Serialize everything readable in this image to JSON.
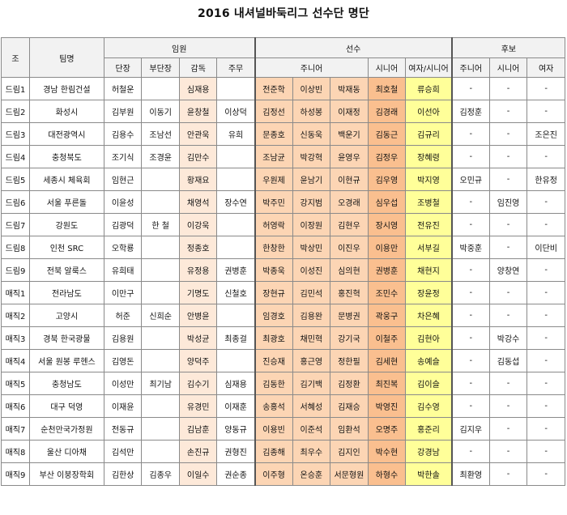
{
  "title": "2016 내셔널바둑리그 선수단 명단",
  "colors": {
    "header_bg": "#f2f2f2",
    "gamdok": "#fde9d9",
    "junior": "#fcd5b4",
    "senior": "#fabf8f",
    "women": "#ffff99"
  },
  "headers": {
    "jo": "조",
    "team": "팀명",
    "officers": "임원",
    "players": "선수",
    "reserves": "후보",
    "dandan": "단장",
    "bu_dandan": "부단장",
    "gamdok": "감독",
    "jumu": "주무",
    "junior": "주니어",
    "senior": "시니어",
    "women_senior": "여자/시니어",
    "r_junior": "주니어",
    "r_senior": "시니어",
    "r_women": "여자"
  },
  "rows": [
    {
      "jo": "드림1",
      "team": "경남 한림건설",
      "dandan": "허철운",
      "bu": "",
      "gamdok": "심재용",
      "jumu": "",
      "j1": "전준학",
      "j2": "이상빈",
      "j3": "박재동",
      "sen": "최호철",
      "wom": "류승희",
      "rj": "-",
      "rs": "-",
      "rw": "-"
    },
    {
      "jo": "드림2",
      "team": "화성시",
      "dandan": "김부원",
      "bu": "이동기",
      "gamdok": "윤창철",
      "jumu": "이상덕",
      "j1": "김정선",
      "j2": "하성봉",
      "j3": "이재정",
      "sen": "김경래",
      "wom": "이선아",
      "rj": "김정훈",
      "rs": "-",
      "rw": "-"
    },
    {
      "jo": "드림3",
      "team": "대전광역시",
      "dandan": "김용수",
      "bu": "조남선",
      "gamdok": "안관욱",
      "jumu": "유희",
      "j1": "문종호",
      "j2": "신동욱",
      "j3": "백운기",
      "sen": "김동근",
      "wom": "김규리",
      "rj": "-",
      "rs": "-",
      "rw": "조은진"
    },
    {
      "jo": "드림4",
      "team": "충청북도",
      "dandan": "조기식",
      "bu": "조경윤",
      "gamdok": "김만수",
      "jumu": "",
      "j1": "조남균",
      "j2": "박강혁",
      "j3": "윤영우",
      "sen": "김정우",
      "wom": "장혜령",
      "rj": "-",
      "rs": "-",
      "rw": "-"
    },
    {
      "jo": "드림5",
      "team": "세종시 체육회",
      "dandan": "임현근",
      "bu": "",
      "gamdok": "황재요",
      "jumu": "",
      "j1": "우원제",
      "j2": "윤남기",
      "j3": "이현규",
      "sen": "김우영",
      "wom": "박지영",
      "rj": "오민규",
      "rs": "-",
      "rw": "한유정"
    },
    {
      "jo": "드림6",
      "team": "서울 푸른돌",
      "dandan": "이윤성",
      "bu": "",
      "gamdok": "채영석",
      "jumu": "장수연",
      "j1": "박주민",
      "j2": "강지범",
      "j3": "오경래",
      "sen": "심우섭",
      "wom": "조병철",
      "rj": "-",
      "rs": "임진영",
      "rw": "-"
    },
    {
      "jo": "드림7",
      "team": "강원도",
      "dandan": "김광덕",
      "bu": "한 철",
      "gamdok": "이강욱",
      "jumu": "",
      "j1": "허영락",
      "j2": "이장원",
      "j3": "김현우",
      "sen": "장시영",
      "wom": "전유진",
      "rj": "-",
      "rs": "-",
      "rw": "-"
    },
    {
      "jo": "드림8",
      "team": "인천 SRC",
      "dandan": "오학룡",
      "bu": "",
      "gamdok": "정종호",
      "jumu": "",
      "j1": "한창한",
      "j2": "박상민",
      "j3": "이진우",
      "sen": "이용만",
      "wom": "서부길",
      "rj": "박중훈",
      "rs": "-",
      "rw": "이단비"
    },
    {
      "jo": "드림9",
      "team": "전북 알룩스",
      "dandan": "유희태",
      "bu": "",
      "gamdok": "유정용",
      "jumu": "권병훈",
      "j1": "박종욱",
      "j2": "이성진",
      "j3": "심의현",
      "sen": "권병훈",
      "wom": "채현지",
      "rj": "-",
      "rs": "양창연",
      "rw": "-"
    },
    {
      "jo": "매직1",
      "team": "전라남도",
      "dandan": "이만구",
      "bu": "",
      "gamdok": "기명도",
      "jumu": "신철호",
      "j1": "장현규",
      "j2": "김민석",
      "j3": "홍진혁",
      "sen": "조민수",
      "wom": "장윤정",
      "rj": "-",
      "rs": "-",
      "rw": "-"
    },
    {
      "jo": "매직2",
      "team": "고양시",
      "dandan": "허준",
      "bu": "신희순",
      "gamdok": "안병윤",
      "jumu": "",
      "j1": "임경호",
      "j2": "김용완",
      "j3": "문병권",
      "sen": "곽웅구",
      "wom": "차은혜",
      "rj": "-",
      "rs": "-",
      "rw": "-"
    },
    {
      "jo": "매직3",
      "team": "경북 한국광물",
      "dandan": "김용원",
      "bu": "",
      "gamdok": "박성균",
      "jumu": "최종걸",
      "j1": "최광호",
      "j2": "채민혁",
      "j3": "강기국",
      "sen": "이철주",
      "wom": "김현아",
      "rj": "-",
      "rs": "박강수",
      "rw": "-"
    },
    {
      "jo": "매직4",
      "team": "서울 원봉 루헨스",
      "dandan": "김영돈",
      "bu": "",
      "gamdok": "양덕주",
      "jumu": "",
      "j1": "진승재",
      "j2": "홍근영",
      "j3": "정한필",
      "sen": "김세현",
      "wom": "송예슬",
      "rj": "-",
      "rs": "김동섭",
      "rw": "-"
    },
    {
      "jo": "매직5",
      "team": "충청남도",
      "dandan": "이성만",
      "bu": "최기남",
      "gamdok": "김수기",
      "jumu": "심재용",
      "j1": "김동한",
      "j2": "김기백",
      "j3": "김정환",
      "sen": "최진복",
      "wom": "김이슬",
      "rj": "-",
      "rs": "-",
      "rw": "-"
    },
    {
      "jo": "매직6",
      "team": "대구 덕영",
      "dandan": "이재윤",
      "bu": "",
      "gamdok": "유경민",
      "jumu": "이재훈",
      "j1": "송홍석",
      "j2": "서혜성",
      "j3": "김재승",
      "sen": "박영진",
      "wom": "김수영",
      "rj": "-",
      "rs": "-",
      "rw": "-"
    },
    {
      "jo": "매직7",
      "team": "순천만국가정원",
      "dandan": "전동규",
      "bu": "",
      "gamdok": "김남훈",
      "jumu": "양동규",
      "j1": "이용빈",
      "j2": "이준석",
      "j3": "임환석",
      "sen": "오명주",
      "wom": "홍준리",
      "rj": "김지우",
      "rs": "-",
      "rw": "-"
    },
    {
      "jo": "매직8",
      "team": "울산 디아채",
      "dandan": "김석만",
      "bu": "",
      "gamdok": "손진규",
      "jumu": "권형진",
      "j1": "김종해",
      "j2": "최우수",
      "j3": "김지인",
      "sen": "박수현",
      "wom": "강경남",
      "rj": "-",
      "rs": "-",
      "rw": "-"
    },
    {
      "jo": "매직9",
      "team": "부산 이붕장학회",
      "dandan": "김한상",
      "bu": "김종우",
      "gamdok": "이일수",
      "jumu": "권순종",
      "j1": "이주형",
      "j2": "온승훈",
      "j3": "서문형원",
      "sen": "하형수",
      "wom": "박한솔",
      "rj": "최환영",
      "rs": "-",
      "rw": "-"
    }
  ]
}
